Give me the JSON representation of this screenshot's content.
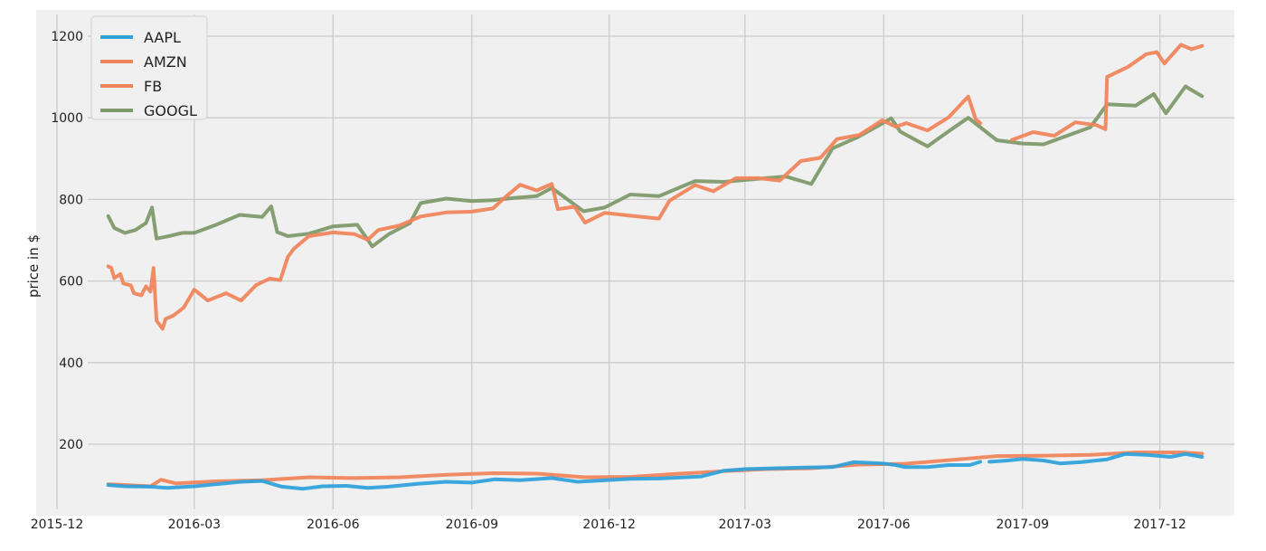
{
  "chart_data": {
    "type": "line",
    "title": "",
    "xlabel": "",
    "ylabel": "price in $",
    "ylim": [
      50,
      1240
    ],
    "xlim": [
      "2015-11-25",
      "2018-01-11"
    ],
    "x_ticks": [
      "2015-12",
      "2016-03",
      "2016-06",
      "2016-09",
      "2016-12",
      "2017-03",
      "2017-06",
      "2017-09",
      "2017-12"
    ],
    "y_ticks": [
      200,
      400,
      600,
      800,
      1000,
      1200
    ],
    "grid": true,
    "legend_position": "top-left",
    "colors": {
      "background": "#f0f0f0",
      "grid": "#cbcbcb",
      "AAPL": "#30a2da",
      "AMZN": "#fc4f30",
      "FB": "#e5ae38",
      "GOOGL": "#6d904f"
    },
    "legend_colors": {
      "AAPL": "#30a2da",
      "AMZN": "#f0855c",
      "FB": "#f0855c",
      "GOOGL": "#7f9a6a"
    },
    "series": [
      {
        "name": "AAPL",
        "points": [
          [
            "2016-01-04",
            100
          ],
          [
            "2016-01-15",
            97
          ],
          [
            "2016-02-01",
            96
          ],
          [
            "2016-02-12",
            93
          ],
          [
            "2016-03-01",
            97
          ],
          [
            "2016-03-15",
            102
          ],
          [
            "2016-04-01",
            108
          ],
          [
            "2016-04-15",
            110
          ],
          [
            "2016-04-28",
            96
          ],
          [
            "2016-05-12",
            91
          ],
          [
            "2016-05-25",
            97
          ],
          [
            "2016-06-10",
            98
          ],
          [
            "2016-06-24",
            93
          ],
          [
            "2016-07-08",
            96
          ],
          [
            "2016-07-27",
            103
          ],
          [
            "2016-08-15",
            108
          ],
          [
            "2016-09-01",
            106
          ],
          [
            "2016-09-16",
            114
          ],
          [
            "2016-10-03",
            112
          ],
          [
            "2016-10-24",
            117
          ],
          [
            "2016-11-10",
            108
          ],
          [
            "2016-11-25",
            111
          ],
          [
            "2016-12-15",
            115
          ],
          [
            "2017-01-03",
            116
          ],
          [
            "2017-01-31",
            121
          ],
          [
            "2017-02-15",
            135
          ],
          [
            "2017-03-01",
            139
          ],
          [
            "2017-03-20",
            141
          ],
          [
            "2017-04-10",
            143
          ],
          [
            "2017-04-28",
            144
          ],
          [
            "2017-05-12",
            156
          ],
          [
            "2017-05-31",
            153
          ],
          [
            "2017-06-09",
            149
          ],
          [
            "2017-06-15",
            144
          ],
          [
            "2017-06-30",
            144
          ],
          [
            "2017-07-14",
            149
          ],
          [
            "2017-07-28",
            149
          ],
          [
            "2017-08-04",
            157
          ],
          [
            "2017-08-07",
            null
          ],
          [
            "2017-08-10",
            157
          ],
          [
            "2017-08-22",
            160
          ],
          [
            "2017-09-01",
            164
          ],
          [
            "2017-09-15",
            160
          ],
          [
            "2017-09-26",
            153
          ],
          [
            "2017-10-10",
            156
          ],
          [
            "2017-10-27",
            163
          ],
          [
            "2017-11-08",
            176
          ],
          [
            "2017-11-22",
            174
          ],
          [
            "2017-12-08",
            169
          ],
          [
            "2017-12-18",
            176
          ],
          [
            "2017-12-29",
            169
          ]
        ]
      },
      {
        "name": "AMZN",
        "points": [
          [
            "2016-01-04",
            636
          ],
          [
            "2016-01-06",
            632
          ],
          [
            "2016-01-08",
            607
          ],
          [
            "2016-01-12",
            617
          ],
          [
            "2016-01-14",
            594
          ],
          [
            "2016-01-19",
            589
          ],
          [
            "2016-01-21",
            570
          ],
          [
            "2016-01-26",
            565
          ],
          [
            "2016-01-29",
            587
          ],
          [
            "2016-02-01",
            574
          ],
          [
            "2016-02-03",
            632
          ],
          [
            "2016-02-05",
            503
          ],
          [
            "2016-02-09",
            483
          ],
          [
            "2016-02-11",
            507
          ],
          [
            "2016-02-16",
            515
          ],
          [
            "2016-02-23",
            535
          ],
          [
            "2016-03-01",
            579
          ],
          [
            "2016-03-10",
            552
          ],
          [
            "2016-03-22",
            570
          ],
          [
            "2016-04-01",
            552
          ],
          [
            "2016-04-11",
            590
          ],
          [
            "2016-04-20",
            606
          ],
          [
            "2016-04-27",
            602
          ],
          [
            "2016-05-02",
            659
          ],
          [
            "2016-05-06",
            679
          ],
          [
            "2016-05-16",
            710
          ],
          [
            "2016-06-01",
            719
          ],
          [
            "2016-06-15",
            715
          ],
          [
            "2016-06-24",
            701
          ],
          [
            "2016-07-01",
            725
          ],
          [
            "2016-07-15",
            736
          ],
          [
            "2016-07-29",
            758
          ],
          [
            "2016-08-15",
            768
          ],
          [
            "2016-09-01",
            770
          ],
          [
            "2016-09-15",
            778
          ],
          [
            "2016-09-23",
            805
          ],
          [
            "2016-10-03",
            836
          ],
          [
            "2016-10-14",
            822
          ],
          [
            "2016-10-24",
            838
          ],
          [
            "2016-10-28",
            776
          ],
          [
            "2016-11-08",
            782
          ],
          [
            "2016-11-15",
            743
          ],
          [
            "2016-11-28",
            767
          ],
          [
            "2016-12-15",
            760
          ],
          [
            "2017-01-03",
            753
          ],
          [
            "2017-01-10",
            797
          ],
          [
            "2017-01-27",
            835
          ],
          [
            "2017-02-08",
            820
          ],
          [
            "2017-02-23",
            852
          ],
          [
            "2017-03-10",
            852
          ],
          [
            "2017-03-24",
            846
          ],
          [
            "2017-04-07",
            894
          ],
          [
            "2017-04-20",
            902
          ],
          [
            "2017-05-01",
            948
          ],
          [
            "2017-05-16",
            958
          ],
          [
            "2017-05-31",
            994
          ],
          [
            "2017-06-09",
            978
          ],
          [
            "2017-06-16",
            987
          ],
          [
            "2017-06-30",
            969
          ],
          [
            "2017-07-14",
            1001
          ],
          [
            "2017-07-27",
            1052
          ],
          [
            "2017-08-01",
            996
          ],
          [
            "2017-08-04",
            987
          ],
          [
            "2017-08-07",
            null
          ],
          [
            "2017-08-25",
            946
          ],
          [
            "2017-09-08",
            965
          ],
          [
            "2017-09-22",
            956
          ],
          [
            "2017-10-06",
            989
          ],
          [
            "2017-10-20",
            982
          ],
          [
            "2017-10-26",
            972
          ],
          [
            "2017-10-27",
            1100
          ],
          [
            "2017-11-10",
            1125
          ],
          [
            "2017-11-22",
            1156
          ],
          [
            "2017-11-29",
            1161
          ],
          [
            "2017-12-04",
            1133
          ],
          [
            "2017-12-15",
            1179
          ],
          [
            "2017-12-22",
            1168
          ],
          [
            "2017-12-29",
            1176
          ]
        ]
      },
      {
        "name": "FB",
        "points": [
          [
            "2016-01-04",
            102
          ],
          [
            "2016-02-01",
            97
          ],
          [
            "2016-02-08",
            113
          ],
          [
            "2016-02-18",
            104
          ],
          [
            "2016-03-15",
            109
          ],
          [
            "2016-04-15",
            112
          ],
          [
            "2016-05-16",
            119
          ],
          [
            "2016-06-15",
            117
          ],
          [
            "2016-07-15",
            119
          ],
          [
            "2016-08-15",
            125
          ],
          [
            "2016-09-15",
            129
          ],
          [
            "2016-10-14",
            128
          ],
          [
            "2016-11-15",
            119
          ],
          [
            "2016-12-15",
            120
          ],
          [
            "2017-01-17",
            128
          ],
          [
            "2017-02-15",
            134
          ],
          [
            "2017-03-15",
            139
          ],
          [
            "2017-04-14",
            141
          ],
          [
            "2017-05-15",
            150
          ],
          [
            "2017-06-15",
            152
          ],
          [
            "2017-07-14",
            161
          ],
          [
            "2017-08-15",
            171
          ],
          [
            "2017-09-15",
            172
          ],
          [
            "2017-10-16",
            174
          ],
          [
            "2017-11-15",
            180
          ],
          [
            "2017-12-15",
            180
          ],
          [
            "2017-12-29",
            177
          ]
        ]
      },
      {
        "name": "GOOGL",
        "points": [
          [
            "2016-01-04",
            759
          ],
          [
            "2016-01-08",
            730
          ],
          [
            "2016-01-15",
            718
          ],
          [
            "2016-01-22",
            725
          ],
          [
            "2016-01-29",
            742
          ],
          [
            "2016-02-02",
            780
          ],
          [
            "2016-02-05",
            704
          ],
          [
            "2016-02-12",
            709
          ],
          [
            "2016-02-22",
            718
          ],
          [
            "2016-03-01",
            718
          ],
          [
            "2016-03-15",
            737
          ],
          [
            "2016-03-31",
            762
          ],
          [
            "2016-04-15",
            757
          ],
          [
            "2016-04-21",
            783
          ],
          [
            "2016-04-25",
            720
          ],
          [
            "2016-05-02",
            710
          ],
          [
            "2016-05-16",
            716
          ],
          [
            "2016-06-01",
            734
          ],
          [
            "2016-06-17",
            738
          ],
          [
            "2016-06-27",
            685
          ],
          [
            "2016-07-08",
            715
          ],
          [
            "2016-07-22",
            742
          ],
          [
            "2016-07-29",
            791
          ],
          [
            "2016-08-15",
            802
          ],
          [
            "2016-09-01",
            796
          ],
          [
            "2016-09-15",
            798
          ],
          [
            "2016-09-30",
            804
          ],
          [
            "2016-10-14",
            808
          ],
          [
            "2016-10-24",
            828
          ],
          [
            "2016-10-31",
            809
          ],
          [
            "2016-11-14",
            771
          ],
          [
            "2016-11-28",
            780
          ],
          [
            "2016-12-15",
            812
          ],
          [
            "2017-01-03",
            808
          ],
          [
            "2017-01-27",
            845
          ],
          [
            "2017-02-15",
            843
          ],
          [
            "2017-03-15",
            852
          ],
          [
            "2017-03-28",
            856
          ],
          [
            "2017-04-14",
            838
          ],
          [
            "2017-04-28",
            925
          ],
          [
            "2017-05-15",
            953
          ],
          [
            "2017-05-31",
            986
          ],
          [
            "2017-06-06",
            999
          ],
          [
            "2017-06-12",
            966
          ],
          [
            "2017-06-30",
            930
          ],
          [
            "2017-07-14",
            967
          ],
          [
            "2017-07-27",
            1000
          ],
          [
            "2017-08-15",
            945
          ],
          [
            "2017-09-01",
            937
          ],
          [
            "2017-09-15",
            935
          ],
          [
            "2017-10-02",
            958
          ],
          [
            "2017-10-16",
            977
          ],
          [
            "2017-10-27",
            1033
          ],
          [
            "2017-11-15",
            1030
          ],
          [
            "2017-11-27",
            1058
          ],
          [
            "2017-12-05",
            1011
          ],
          [
            "2017-12-18",
            1077
          ],
          [
            "2017-12-22",
            1068
          ],
          [
            "2017-12-29",
            1053
          ]
        ]
      }
    ]
  }
}
